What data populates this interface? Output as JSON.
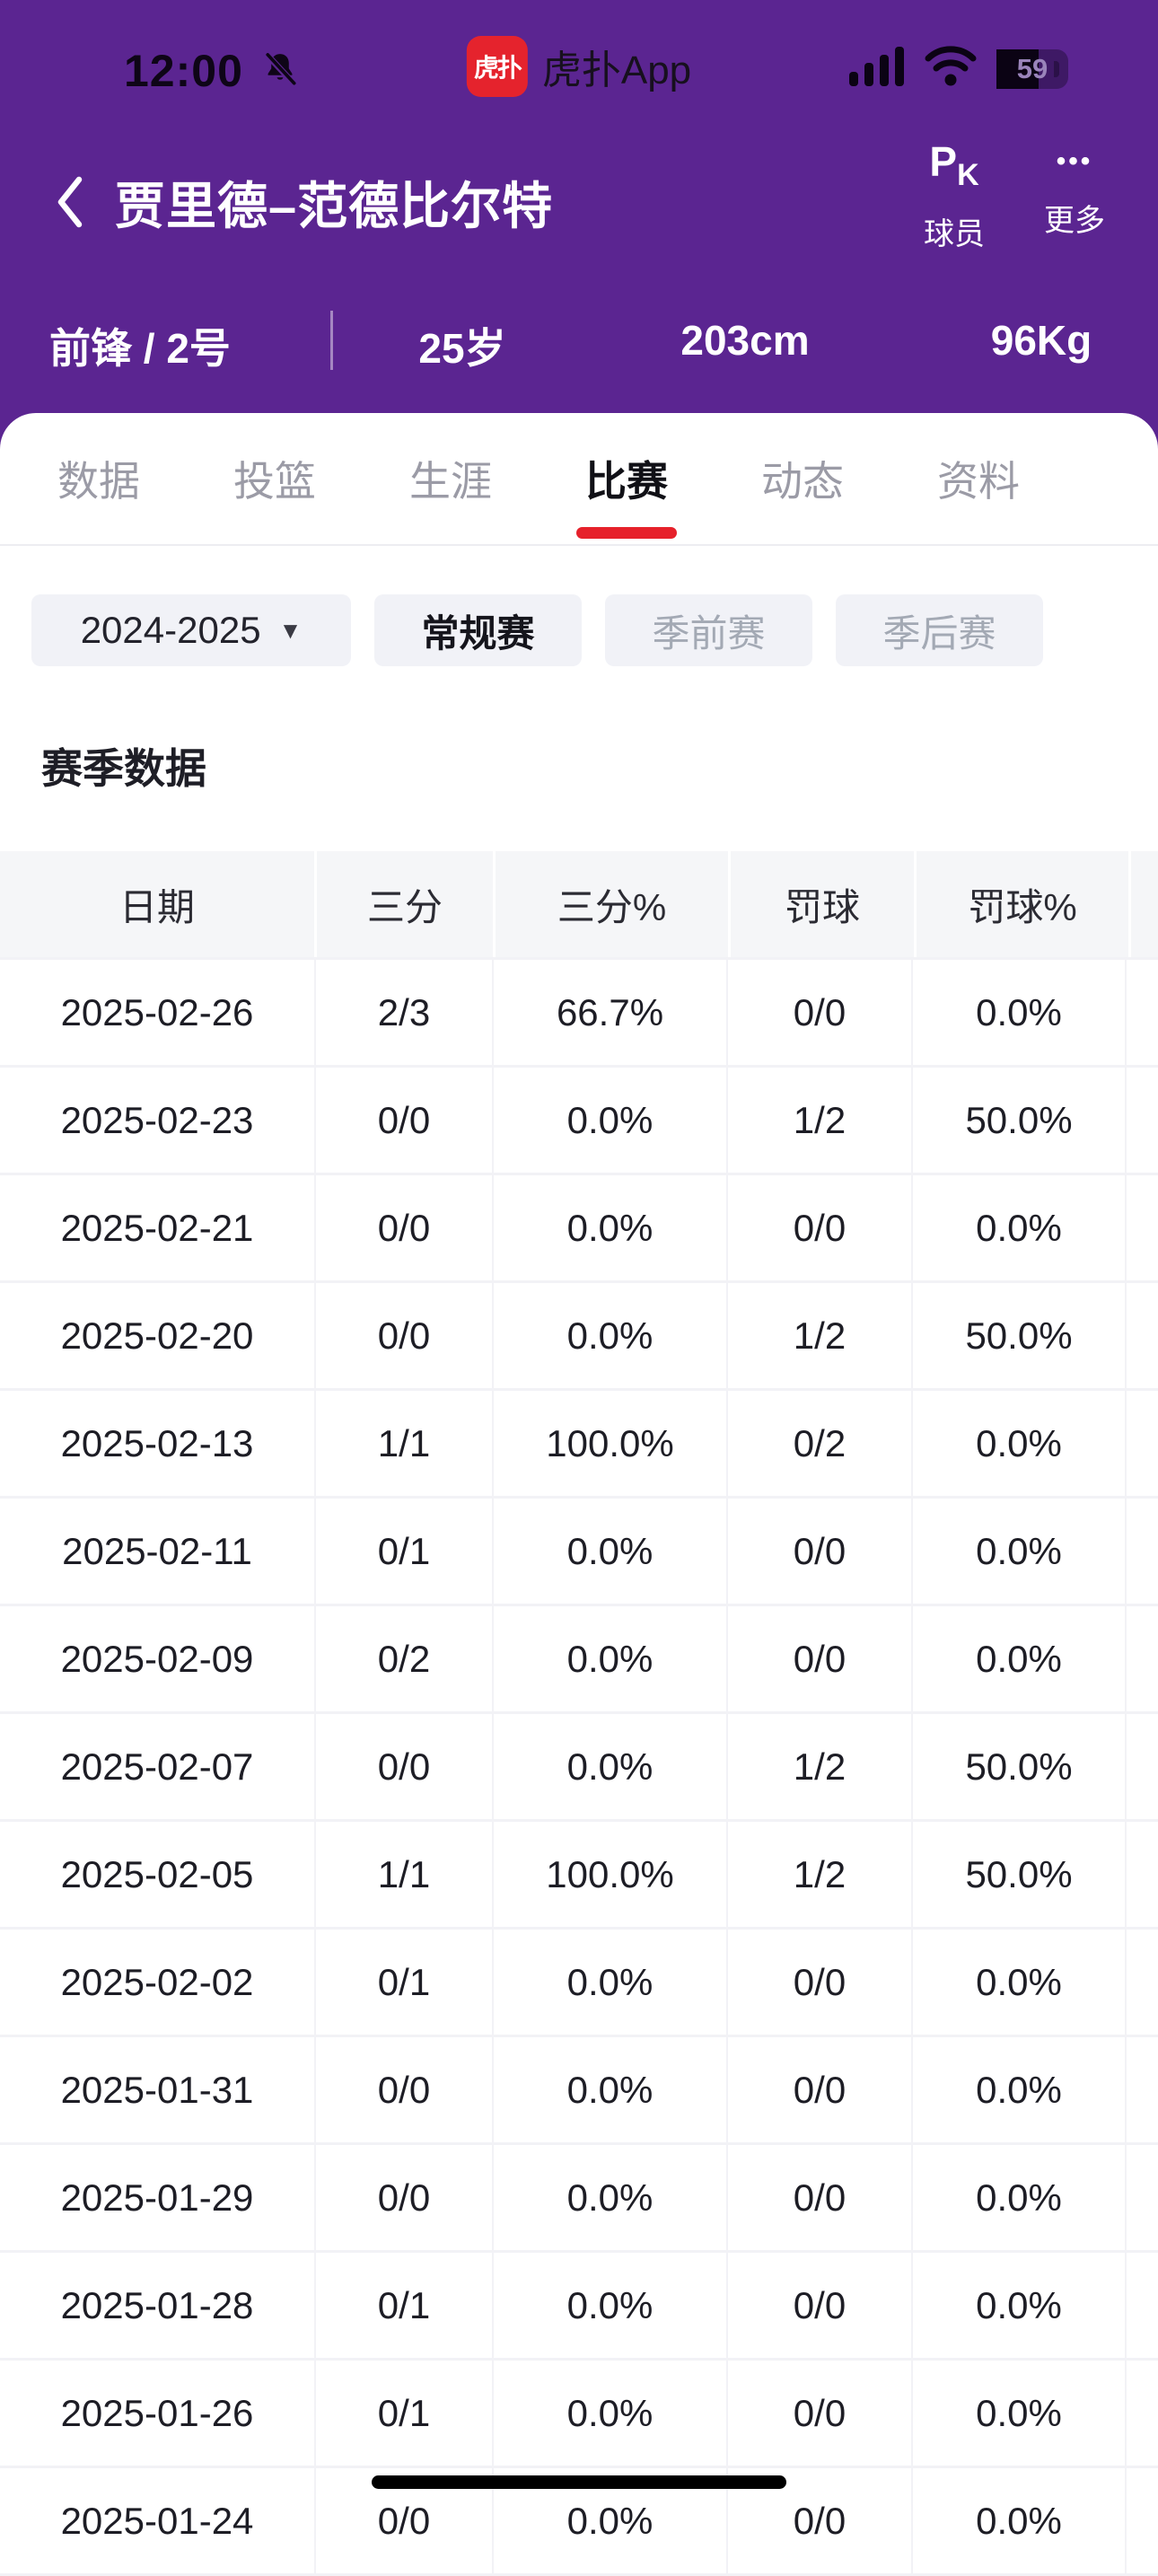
{
  "status_bar": {
    "time": "12:00",
    "battery_percent": "59",
    "app_badge": {
      "icon_text": "虎扑",
      "name": "虎扑App"
    }
  },
  "header": {
    "title": "贾里德–范德比尔特",
    "actions": {
      "pk_icon_p": "P",
      "pk_icon_k": "K",
      "pk_label": "球员",
      "more_icon_text": "•••",
      "more_label": "更多"
    }
  },
  "player_info": {
    "position_number": "前锋 / 2号",
    "age": "25岁",
    "height": "203cm",
    "weight": "96Kg"
  },
  "tabs": [
    {
      "label": "数据",
      "active": false
    },
    {
      "label": "投篮",
      "active": false
    },
    {
      "label": "生涯",
      "active": false
    },
    {
      "label": "比赛",
      "active": true
    },
    {
      "label": "动态",
      "active": false
    },
    {
      "label": "资料",
      "active": false
    }
  ],
  "filters": {
    "season": {
      "label": "2024-2025",
      "caret": "▼"
    },
    "chips": [
      {
        "label": "常规赛",
        "active": true
      },
      {
        "label": "季前赛",
        "active": false
      },
      {
        "label": "季后赛",
        "active": false
      }
    ]
  },
  "section_title": "赛季数据",
  "table": {
    "columns": [
      "日期",
      "三分",
      "三分%",
      "罚球",
      "罚球%"
    ],
    "rows": [
      [
        "2025-02-26",
        "2/3",
        "66.7%",
        "0/0",
        "0.0%"
      ],
      [
        "2025-02-23",
        "0/0",
        "0.0%",
        "1/2",
        "50.0%"
      ],
      [
        "2025-02-21",
        "0/0",
        "0.0%",
        "0/0",
        "0.0%"
      ],
      [
        "2025-02-20",
        "0/0",
        "0.0%",
        "1/2",
        "50.0%"
      ],
      [
        "2025-02-13",
        "1/1",
        "100.0%",
        "0/2",
        "0.0%"
      ],
      [
        "2025-02-11",
        "0/1",
        "0.0%",
        "0/0",
        "0.0%"
      ],
      [
        "2025-02-09",
        "0/2",
        "0.0%",
        "0/0",
        "0.0%"
      ],
      [
        "2025-02-07",
        "0/0",
        "0.0%",
        "1/2",
        "50.0%"
      ],
      [
        "2025-02-05",
        "1/1",
        "100.0%",
        "1/2",
        "50.0%"
      ],
      [
        "2025-02-02",
        "0/1",
        "0.0%",
        "0/0",
        "0.0%"
      ],
      [
        "2025-01-31",
        "0/0",
        "0.0%",
        "0/0",
        "0.0%"
      ],
      [
        "2025-01-29",
        "0/0",
        "0.0%",
        "0/0",
        "0.0%"
      ],
      [
        "2025-01-28",
        "0/1",
        "0.0%",
        "0/0",
        "0.0%"
      ],
      [
        "2025-01-26",
        "0/1",
        "0.0%",
        "0/0",
        "0.0%"
      ],
      [
        "2025-01-24",
        "0/0",
        "0.0%",
        "0/0",
        "0.0%"
      ]
    ]
  },
  "colors": {
    "header_purple": "#5B2591",
    "accent_red": "#E6212B",
    "app_icon_red": "#E5232D"
  }
}
